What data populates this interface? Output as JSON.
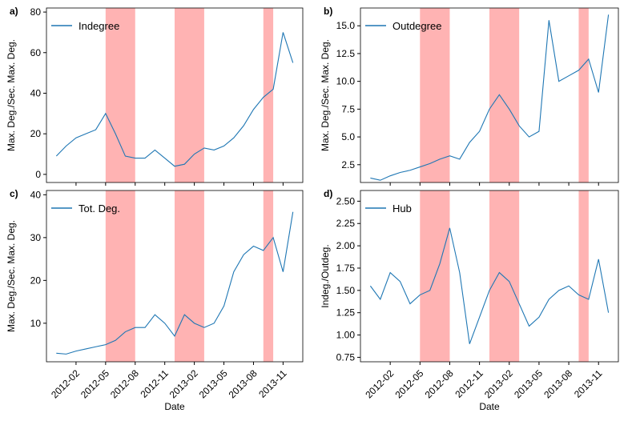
{
  "chart_data": [
    {
      "type": "line",
      "panel": "a)",
      "ylabel": "Max. Deg./Sec. Max. Deg.",
      "x": [
        "2011-12",
        "2012-01",
        "2012-02",
        "2012-03",
        "2012-04",
        "2012-05",
        "2012-06",
        "2012-07",
        "2012-08",
        "2012-09",
        "2012-10",
        "2012-11",
        "2012-12",
        "2013-01",
        "2013-02",
        "2013-03",
        "2013-04",
        "2013-05",
        "2013-06",
        "2013-07",
        "2013-08",
        "2013-09",
        "2013-10",
        "2013-11",
        "2013-12"
      ],
      "series": [
        {
          "name": "Indegree",
          "color": "#1f77b4",
          "values": [
            9,
            14,
            18,
            20,
            22,
            30,
            20,
            9,
            8,
            8,
            12,
            8,
            4,
            5,
            10,
            13,
            12,
            14,
            18,
            24,
            32,
            38,
            42,
            70,
            55
          ]
        }
      ],
      "xlim": [
        "2011-11",
        "2014-01"
      ],
      "xticks": [
        "2012-02",
        "2012-05",
        "2012-08",
        "2012-11",
        "2013-02",
        "2013-05",
        "2013-08",
        "2013-11"
      ],
      "ylim": [
        -4,
        82
      ],
      "yticks": [
        0,
        20,
        40,
        60,
        80
      ],
      "shaded": [
        [
          "2012-05",
          "2012-08"
        ],
        [
          "2012-12",
          "2013-03"
        ],
        [
          "2013-09",
          "2013-10"
        ]
      ],
      "shade_color": "#ffb3b3",
      "legend": "upper left"
    },
    {
      "type": "line",
      "panel": "b)",
      "ylabel": "Max. Deg./Sec. Max. Deg.",
      "x": [
        "2011-12",
        "2012-01",
        "2012-02",
        "2012-03",
        "2012-04",
        "2012-05",
        "2012-06",
        "2012-07",
        "2012-08",
        "2012-09",
        "2012-10",
        "2012-11",
        "2012-12",
        "2013-01",
        "2013-02",
        "2013-03",
        "2013-04",
        "2013-05",
        "2013-06",
        "2013-07",
        "2013-08",
        "2013-09",
        "2013-10",
        "2013-11",
        "2013-12"
      ],
      "series": [
        {
          "name": "Outdegree",
          "color": "#1f77b4",
          "values": [
            1.3,
            1.1,
            1.5,
            1.8,
            2.0,
            2.3,
            2.6,
            3.0,
            3.3,
            3.0,
            4.5,
            5.5,
            7.5,
            8.8,
            7.5,
            6.0,
            5.0,
            5.5,
            15.5,
            10,
            10.5,
            11,
            12,
            9,
            16
          ]
        }
      ],
      "xlim": [
        "2011-11",
        "2014-01"
      ],
      "xticks": [
        "2012-02",
        "2012-05",
        "2012-08",
        "2012-11",
        "2013-02",
        "2013-05",
        "2013-08",
        "2013-11"
      ],
      "ylim": [
        0.9,
        16.6
      ],
      "yticks": [
        2.5,
        {
          "value": 5,
          "label": "5.0"
        },
        7.5,
        {
          "value": 10,
          "label": "10.0"
        },
        12.5,
        {
          "value": 15,
          "label": "15.0"
        }
      ],
      "shaded": [
        [
          "2012-05",
          "2012-08"
        ],
        [
          "2012-12",
          "2013-03"
        ],
        [
          "2013-09",
          "2013-10"
        ]
      ],
      "shade_color": "#ffb3b3",
      "legend": "upper left"
    },
    {
      "type": "line",
      "panel": "c)",
      "ylabel": "Max. Deg./Sec. Max. Deg.",
      "xlabel": "Date",
      "x": [
        "2011-12",
        "2012-01",
        "2012-02",
        "2012-03",
        "2012-04",
        "2012-05",
        "2012-06",
        "2012-07",
        "2012-08",
        "2012-09",
        "2012-10",
        "2012-11",
        "2012-12",
        "2013-01",
        "2013-02",
        "2013-03",
        "2013-04",
        "2013-05",
        "2013-06",
        "2013-07",
        "2013-08",
        "2013-09",
        "2013-10",
        "2013-11",
        "2013-12"
      ],
      "series": [
        {
          "name": "Tot. Deg.",
          "color": "#1f77b4",
          "values": [
            3,
            2.8,
            3.5,
            4,
            4.5,
            5,
            6,
            8,
            9,
            9,
            12,
            10,
            7,
            12,
            10,
            9,
            10,
            14,
            22,
            26,
            28,
            27,
            30,
            22,
            36
          ]
        }
      ],
      "xlim": [
        "2011-11",
        "2014-01"
      ],
      "xticks": [
        "2012-02",
        "2012-05",
        "2012-08",
        "2012-11",
        "2013-02",
        "2013-05",
        "2013-08",
        "2013-11"
      ],
      "ylim": [
        1,
        41
      ],
      "yticks": [
        10,
        20,
        30,
        40
      ],
      "shaded": [
        [
          "2012-05",
          "2012-08"
        ],
        [
          "2012-12",
          "2013-03"
        ],
        [
          "2013-09",
          "2013-10"
        ]
      ],
      "shade_color": "#ffb3b3",
      "legend": "upper left"
    },
    {
      "type": "line",
      "panel": "d)",
      "ylabel": "Indeg./Outdeg.",
      "xlabel": "Date",
      "x": [
        "2011-12",
        "2012-01",
        "2012-02",
        "2012-03",
        "2012-04",
        "2012-05",
        "2012-06",
        "2012-07",
        "2012-08",
        "2012-09",
        "2012-10",
        "2012-11",
        "2012-12",
        "2013-01",
        "2013-02",
        "2013-03",
        "2013-04",
        "2013-05",
        "2013-06",
        "2013-07",
        "2013-08",
        "2013-09",
        "2013-10",
        "2013-11",
        "2013-12"
      ],
      "series": [
        {
          "name": "Hub",
          "color": "#1f77b4",
          "values": [
            1.55,
            1.4,
            1.7,
            1.6,
            1.35,
            1.45,
            1.5,
            1.8,
            2.2,
            1.7,
            0.9,
            1.2,
            1.5,
            1.7,
            1.6,
            1.35,
            1.1,
            1.2,
            1.4,
            1.5,
            1.55,
            1.45,
            1.4,
            1.85,
            1.25
          ]
        }
      ],
      "xlim": [
        "2011-11",
        "2014-01"
      ],
      "xticks": [
        "2012-02",
        "2012-05",
        "2012-08",
        "2012-11",
        "2013-02",
        "2013-05",
        "2013-08",
        "2013-11"
      ],
      "ylim": [
        0.7,
        2.62
      ],
      "yticks": [
        0.75,
        {
          "value": 1,
          "label": "1.00"
        },
        1.25,
        {
          "value": 1.5,
          "label": "1.50"
        },
        1.75,
        {
          "value": 2,
          "label": "2.00"
        },
        2.25,
        {
          "value": 2.5,
          "label": "2.50"
        }
      ],
      "shaded": [
        [
          "2012-05",
          "2012-08"
        ],
        [
          "2012-12",
          "2013-03"
        ],
        [
          "2013-09",
          "2013-10"
        ]
      ],
      "shade_color": "#ffb3b3",
      "legend": "upper left"
    }
  ]
}
